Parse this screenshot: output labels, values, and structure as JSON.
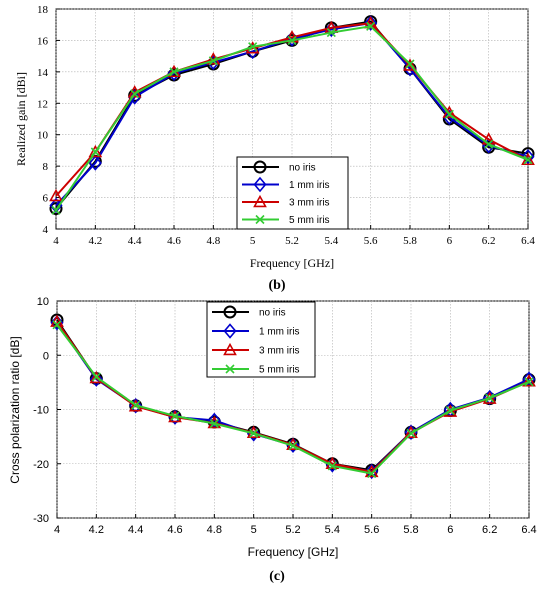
{
  "chart_data": [
    {
      "type": "line",
      "caption": "(b)",
      "xlabel": "Frequency [GHz]",
      "ylabel": "Realized gain [dBi]",
      "xlim": [
        4,
        6.4
      ],
      "ylim": [
        4,
        18
      ],
      "xticks": [
        "4",
        "4.2",
        "4.4",
        "4.6",
        "4.8",
        "5",
        "5.2",
        "5.4",
        "5.6",
        "5.8",
        "6",
        "6.2",
        "6.4"
      ],
      "yticks": [
        "4",
        "6",
        "8",
        "10",
        "12",
        "14",
        "16",
        "18"
      ],
      "grid": true,
      "legend_position": "bottom-center",
      "x": [
        4,
        4.2,
        4.4,
        4.6,
        4.8,
        5,
        5.2,
        5.4,
        5.6,
        5.8,
        6,
        6.2,
        6.4
      ],
      "series": [
        {
          "name": "no iris",
          "color": "#000000",
          "marker": "circle",
          "values": [
            5.3,
            8.3,
            12.5,
            13.8,
            14.5,
            15.3,
            16.0,
            16.8,
            17.2,
            14.2,
            11.0,
            9.2,
            8.8
          ]
        },
        {
          "name": "1 mm iris",
          "color": "#0000cc",
          "marker": "diamond",
          "values": [
            5.5,
            8.2,
            12.4,
            13.9,
            14.6,
            15.3,
            16.1,
            16.7,
            17.1,
            14.2,
            11.1,
            9.3,
            8.6
          ]
        },
        {
          "name": "3 mm iris",
          "color": "#cc0000",
          "marker": "triangle",
          "values": [
            6.1,
            8.9,
            12.7,
            14.0,
            14.8,
            15.5,
            16.2,
            16.8,
            17.1,
            14.4,
            11.4,
            9.7,
            8.4
          ]
        },
        {
          "name": "5 mm iris",
          "color": "#33cc33",
          "marker": "x",
          "values": [
            5.2,
            8.9,
            12.6,
            14.0,
            14.7,
            15.6,
            16.0,
            16.5,
            16.9,
            14.5,
            11.3,
            9.4,
            8.4
          ]
        }
      ]
    },
    {
      "type": "line",
      "caption": "(c)",
      "xlabel": "Frequency [GHz]",
      "ylabel": "Cross polarization ratio [dB]",
      "xlim": [
        4,
        6.4
      ],
      "ylim": [
        -30,
        10
      ],
      "xticks": [
        "4",
        "4.2",
        "4.4",
        "4.6",
        "4.8",
        "5",
        "5.2",
        "5.4",
        "5.6",
        "5.8",
        "6",
        "6.2",
        "6.4"
      ],
      "yticks": [
        "-30",
        "-20",
        "-10",
        "0",
        "10"
      ],
      "grid": true,
      "legend_position": "top-left",
      "x": [
        4,
        4.2,
        4.4,
        4.6,
        4.8,
        5,
        5.2,
        5.4,
        5.6,
        5.8,
        6,
        6.2,
        6.4
      ],
      "series": [
        {
          "name": "no iris",
          "color": "#000000",
          "marker": "circle",
          "values": [
            6.5,
            -4.3,
            -9.3,
            -11.3,
            -12.3,
            -14.2,
            -16.4,
            -20.0,
            -21.2,
            -14.2,
            -10.2,
            -8.0,
            -4.5
          ]
        },
        {
          "name": "1 mm iris",
          "color": "#0000cc",
          "marker": "diamond",
          "values": [
            6.0,
            -4.4,
            -9.3,
            -11.4,
            -12.0,
            -14.5,
            -16.6,
            -20.2,
            -21.4,
            -14.2,
            -10.0,
            -7.8,
            -4.4
          ]
        },
        {
          "name": "3 mm iris",
          "color": "#cc0000",
          "marker": "triangle",
          "values": [
            6.2,
            -4.2,
            -9.4,
            -11.4,
            -12.5,
            -14.3,
            -16.5,
            -20.0,
            -21.5,
            -14.3,
            -10.4,
            -8.0,
            -4.8
          ]
        },
        {
          "name": "5 mm iris",
          "color": "#33cc33",
          "marker": "x",
          "values": [
            5.6,
            -4.0,
            -9.2,
            -11.2,
            -12.6,
            -14.4,
            -16.7,
            -20.4,
            -21.8,
            -14.4,
            -10.2,
            -7.9,
            -4.9
          ]
        }
      ]
    }
  ]
}
